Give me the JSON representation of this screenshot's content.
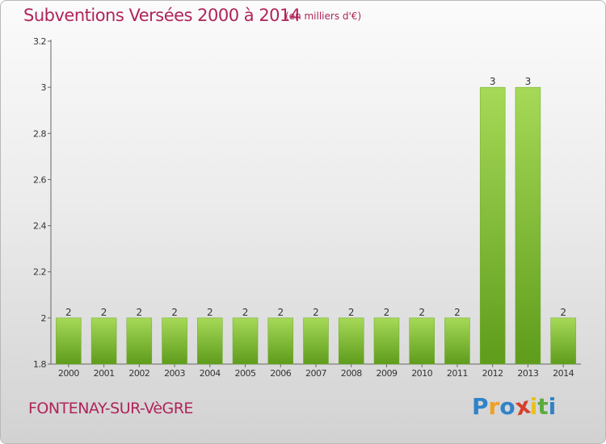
{
  "chart_data": {
    "type": "bar",
    "title": "Subventions Versées 2000 à 2014",
    "unit_note": "(en milliers d'€)",
    "categories": [
      "2000",
      "2001",
      "2002",
      "2003",
      "2004",
      "2005",
      "2006",
      "2007",
      "2008",
      "2009",
      "2010",
      "2011",
      "2012",
      "2013",
      "2014"
    ],
    "values": [
      2,
      2,
      2,
      2,
      2,
      2,
      2,
      2,
      2,
      2,
      2,
      2,
      3,
      3,
      2
    ],
    "data_labels": [
      "2",
      "2",
      "2",
      "2",
      "2",
      "2",
      "2",
      "2",
      "2",
      "2",
      "2",
      "2",
      "3",
      "3",
      "2"
    ],
    "ylim": [
      1.8,
      3.2
    ],
    "yticks": [
      1.8,
      2,
      2.2,
      2.4,
      2.6,
      2.8,
      3,
      3.2
    ],
    "ytick_labels": [
      "1.8",
      "2",
      "2.2",
      "2.4",
      "2.6",
      "2.8",
      "3",
      "3.2"
    ],
    "grid": false,
    "bar_color": "#8cc63f"
  },
  "footer": {
    "commune": "FONTENAY-SUR-VèGRE"
  },
  "logo": {
    "letters": [
      "P",
      "r",
      "o",
      "x",
      "i",
      "t",
      "i"
    ],
    "colors": [
      "#2f83c8",
      "#f0a020",
      "#2f83c8",
      "#d6402c",
      "#e8c020",
      "#5aac3c",
      "#2f83c8"
    ]
  }
}
